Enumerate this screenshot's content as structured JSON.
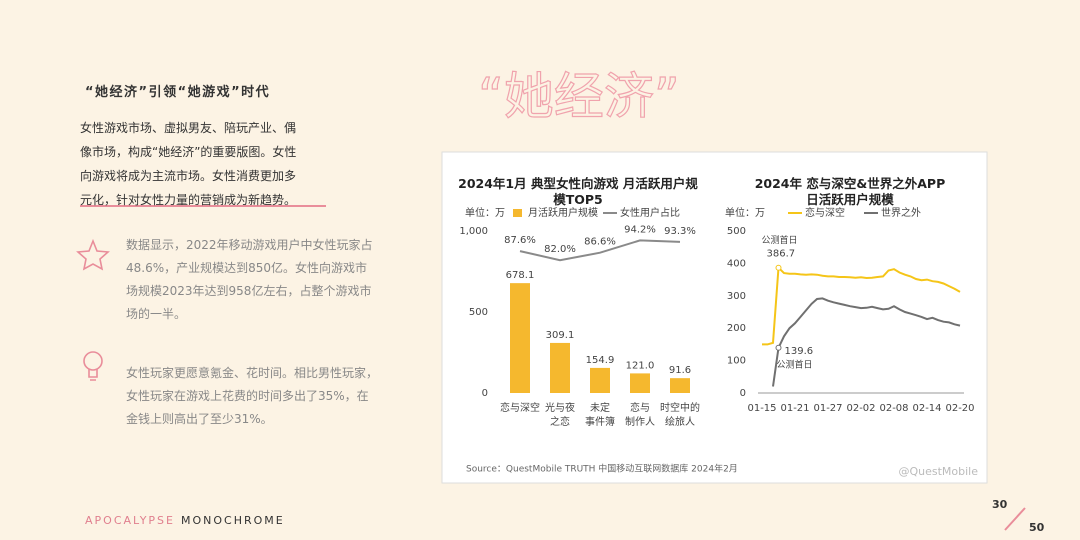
{
  "heading": "“她经济”引领“她游戏”时代",
  "intro": "女性游戏市场、虚拟男友、陪玩产业、偶像市场，构成“她经济”的重要版图。女性向游戏将成为主流市场。女性消费更加多元化，针对女性力量的营销成为新趋势。",
  "banner": "“她经济”",
  "points": [
    "数据显示，2022年移动游戏用户中女性玩家占48.6%，产业规模达到850亿。女性向游戏市场规模2023年达到958亿左右，占整个游戏市场的一半。",
    "女性玩家更愿意氪金、花时间。相比男性玩家，女性玩家在游戏上花费的时间多出了35%，在金钱上则高出了至少31%。"
  ],
  "source": "Source：QuestMobile TRUTH 中国移动互联网数据库 2024年2月",
  "watermark": "@QuestMobile",
  "footer": {
    "left": "APOCALYPSE",
    "right": "MONOCHROME"
  },
  "page": {
    "current": "30",
    "total": "50"
  },
  "chart_data": [
    {
      "type": "bar",
      "title": "2024年1月 典型女性向游戏 月活跃用户规模TOP5",
      "unit": "单位：万",
      "categories": [
        "恋与深空",
        "光与夜\n之恋",
        "未定\n事件簿",
        "恋与\n制作人",
        "时空中的\n绘旅人"
      ],
      "series": [
        {
          "name": "月活跃用户规模",
          "type": "bar",
          "color": "#f5b82e",
          "values": [
            678.1,
            309.1,
            154.9,
            121.0,
            91.6
          ],
          "value_labels": [
            "678.1",
            "309.1",
            "154.9",
            "121.0",
            "91.6"
          ]
        },
        {
          "name": "女性用户占比",
          "type": "line",
          "axis": "y2",
          "color": "#8a8a8a",
          "values": [
            87.6,
            82.0,
            86.6,
            94.2,
            93.3
          ],
          "value_labels": [
            "87.6%",
            "82.0%",
            "86.6%",
            "94.2%",
            "93.3%"
          ]
        }
      ],
      "ylim": [
        0,
        1000
      ],
      "yticks": [
        0,
        500,
        {
          "value": 1000,
          "label": "1,000"
        }
      ],
      "y2lim": [
        0,
        100
      ]
    },
    {
      "type": "line",
      "title": "2024年 恋与深空&世界之外APP日活跃用户规模",
      "unit": "单位：万",
      "categories": [
        "01-15",
        null,
        null,
        null,
        null,
        null,
        "01-21",
        null,
        null,
        null,
        null,
        null,
        "01-27",
        null,
        null,
        null,
        null,
        null,
        "02-02",
        null,
        null,
        null,
        null,
        null,
        "02-08",
        null,
        null,
        null,
        null,
        null,
        "02-14",
        null,
        null,
        null,
        null,
        null,
        "02-20"
      ],
      "series": [
        {
          "name": "恋与深空",
          "color": "#f5c518",
          "values": [
            150,
            150,
            155,
            386.7,
            370,
            368,
            368,
            366,
            365,
            366,
            365,
            362,
            360,
            360,
            358,
            358,
            357,
            356,
            357,
            355,
            356,
            358,
            360,
            378,
            382,
            372,
            365,
            360,
            352,
            348,
            350,
            345,
            343,
            338,
            330,
            322,
            312
          ],
          "value_labels": [
            null,
            null,
            null,
            "386.7",
            null,
            null,
            null,
            null,
            null,
            null,
            null,
            null,
            null,
            null,
            null,
            null,
            null,
            null,
            null,
            null,
            null,
            null,
            null,
            null,
            null,
            null,
            null,
            null,
            null,
            null,
            null,
            null,
            null,
            null,
            null,
            null,
            null
          ]
        },
        {
          "name": "世界之外",
          "color": "#707070",
          "values": [
            null,
            null,
            20,
            139.6,
            175,
            200,
            215,
            235,
            255,
            275,
            290,
            292,
            285,
            280,
            276,
            272,
            268,
            265,
            262,
            263,
            266,
            262,
            258,
            260,
            268,
            258,
            250,
            245,
            240,
            235,
            228,
            232,
            225,
            220,
            218,
            212,
            208
          ],
          "value_labels": [
            null,
            null,
            null,
            "139.6",
            null,
            null,
            null,
            null,
            null,
            null,
            null,
            null,
            null,
            null,
            null,
            null,
            null,
            null,
            null,
            null,
            null,
            null,
            null,
            null,
            null,
            null,
            null,
            null,
            null,
            null,
            null,
            null,
            null,
            null,
            null,
            null,
            null
          ]
        }
      ],
      "annotations": [
        "公测首日",
        "公测首日"
      ],
      "ylim": [
        0,
        500
      ],
      "yticks": [
        0,
        100,
        200,
        300,
        400,
        500
      ]
    }
  ]
}
